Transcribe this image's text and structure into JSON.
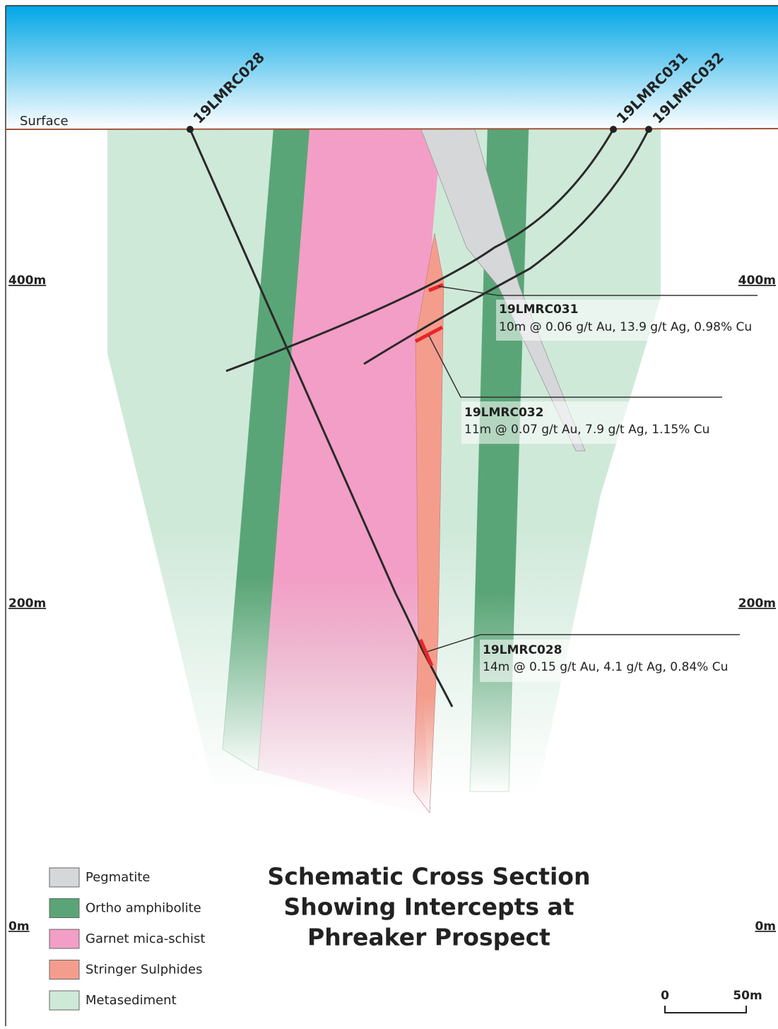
{
  "title_lines": [
    "Schematic Cross Section",
    "Showing Intercepts at",
    "Phreaker Prospect"
  ],
  "surface_label": "Surface",
  "elevations": [
    "400m",
    "200m",
    "0m"
  ],
  "drillholes": [
    "19LMRC028",
    "19LMRC031",
    "19LMRC032"
  ],
  "intercepts": [
    {
      "hole": "19LMRC031",
      "result": "10m @ 0.06 g/t Au, 13.9 g/t Ag, 0.98% Cu"
    },
    {
      "hole": "19LMRC032",
      "result": "11m @ 0.07 g/t Au, 7.9 g/t Ag, 1.15% Cu"
    },
    {
      "hole": "19LMRC028",
      "result": "14m @ 0.15 g/t Au, 4.1 g/t Ag, 0.84% Cu"
    }
  ],
  "legend": [
    {
      "label": "Pegmatite",
      "color": "#d6d7d9"
    },
    {
      "label": "Ortho amphibolite",
      "color": "#5aa577"
    },
    {
      "label": "Garnet mica-schist",
      "color": "#f39ec6"
    },
    {
      "label": "Stringer Sulphides",
      "color": "#f59d8d"
    },
    {
      "label": "Metasediment",
      "color": "#cfe9d9"
    }
  ],
  "scale": [
    "0",
    "50m"
  ]
}
